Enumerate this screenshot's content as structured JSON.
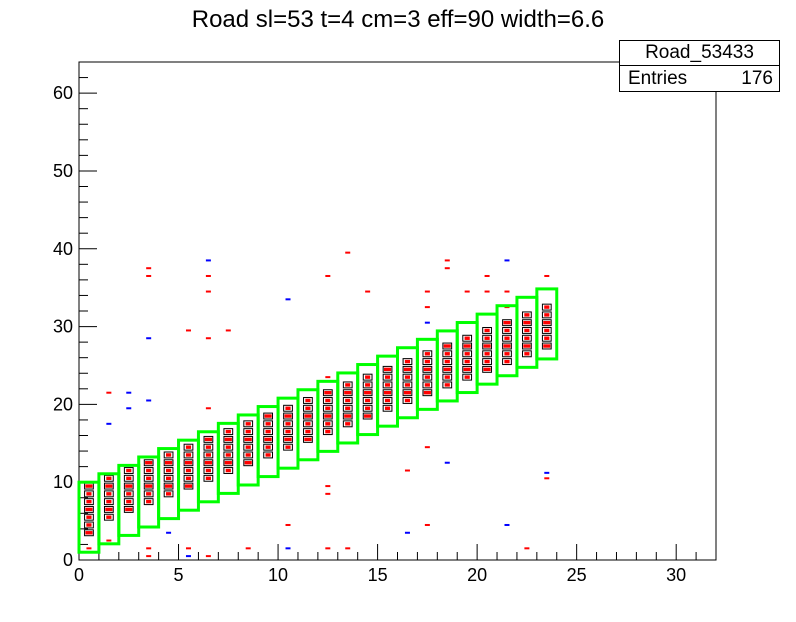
{
  "chart_data": {
    "type": "heatmap",
    "title": "Road sl=53 t=4 cm=3 eff=90 width=6.6",
    "stats": {
      "name": "Road_53433",
      "entries_label": "Entries",
      "entries_value": "176"
    },
    "xlim": [
      0,
      32
    ],
    "ylim": [
      0,
      64
    ],
    "x_ticks": [
      "0",
      "5",
      "10",
      "15",
      "20",
      "25",
      "30"
    ],
    "y_ticks": [
      "0",
      "10",
      "20",
      "30",
      "40",
      "50",
      "60"
    ],
    "xlabel": "",
    "ylabel": "",
    "colors": {
      "frame": "#000000",
      "road": "#00ff00",
      "red": "#ff0000",
      "blue": "#0000ff",
      "black": "#000000"
    },
    "road_band": {
      "x_start": 0,
      "x_end": 24,
      "y_low_at_start": 1,
      "y_high_at_start": 10,
      "slope": 1.08,
      "step": 1
    },
    "main_cells": [
      [
        0,
        3
      ],
      [
        0,
        4
      ],
      [
        0,
        5
      ],
      [
        0,
        6
      ],
      [
        0,
        7
      ],
      [
        0,
        8
      ],
      [
        0,
        9
      ],
      [
        1,
        5
      ],
      [
        1,
        6
      ],
      [
        1,
        7
      ],
      [
        1,
        8
      ],
      [
        1,
        9
      ],
      [
        1,
        10
      ],
      [
        2,
        6
      ],
      [
        2,
        7
      ],
      [
        2,
        8
      ],
      [
        2,
        9
      ],
      [
        2,
        10
      ],
      [
        2,
        11
      ],
      [
        3,
        7
      ],
      [
        3,
        8
      ],
      [
        3,
        9
      ],
      [
        3,
        10
      ],
      [
        3,
        11
      ],
      [
        3,
        12
      ],
      [
        4,
        8
      ],
      [
        4,
        9
      ],
      [
        4,
        10
      ],
      [
        4,
        11
      ],
      [
        4,
        12
      ],
      [
        4,
        13
      ],
      [
        5,
        9
      ],
      [
        5,
        10
      ],
      [
        5,
        11
      ],
      [
        5,
        12
      ],
      [
        5,
        13
      ],
      [
        5,
        14
      ],
      [
        6,
        10
      ],
      [
        6,
        11
      ],
      [
        6,
        12
      ],
      [
        6,
        13
      ],
      [
        6,
        14
      ],
      [
        6,
        15
      ],
      [
        7,
        11
      ],
      [
        7,
        12
      ],
      [
        7,
        13
      ],
      [
        7,
        14
      ],
      [
        7,
        15
      ],
      [
        7,
        16
      ],
      [
        8,
        12
      ],
      [
        8,
        13
      ],
      [
        8,
        14
      ],
      [
        8,
        15
      ],
      [
        8,
        16
      ],
      [
        8,
        17
      ],
      [
        9,
        13
      ],
      [
        9,
        14
      ],
      [
        9,
        15
      ],
      [
        9,
        16
      ],
      [
        9,
        17
      ],
      [
        9,
        18
      ],
      [
        10,
        14
      ],
      [
        10,
        15
      ],
      [
        10,
        16
      ],
      [
        10,
        17
      ],
      [
        10,
        18
      ],
      [
        10,
        19
      ],
      [
        11,
        15
      ],
      [
        11,
        16
      ],
      [
        11,
        17
      ],
      [
        11,
        18
      ],
      [
        11,
        19
      ],
      [
        11,
        20
      ],
      [
        12,
        16
      ],
      [
        12,
        17
      ],
      [
        12,
        18
      ],
      [
        12,
        19
      ],
      [
        12,
        20
      ],
      [
        12,
        21
      ],
      [
        13,
        17
      ],
      [
        13,
        18
      ],
      [
        13,
        19
      ],
      [
        13,
        20
      ],
      [
        13,
        21
      ],
      [
        13,
        22
      ],
      [
        14,
        18
      ],
      [
        14,
        19
      ],
      [
        14,
        20
      ],
      [
        14,
        21
      ],
      [
        14,
        22
      ],
      [
        14,
        23
      ],
      [
        15,
        19
      ],
      [
        15,
        20
      ],
      [
        15,
        21
      ],
      [
        15,
        22
      ],
      [
        15,
        23
      ],
      [
        15,
        24
      ],
      [
        16,
        20
      ],
      [
        16,
        21
      ],
      [
        16,
        22
      ],
      [
        16,
        23
      ],
      [
        16,
        24
      ],
      [
        16,
        25
      ],
      [
        17,
        21
      ],
      [
        17,
        22
      ],
      [
        17,
        23
      ],
      [
        17,
        24
      ],
      [
        17,
        25
      ],
      [
        17,
        26
      ],
      [
        18,
        22
      ],
      [
        18,
        23
      ],
      [
        18,
        24
      ],
      [
        18,
        25
      ],
      [
        18,
        26
      ],
      [
        18,
        27
      ],
      [
        19,
        23
      ],
      [
        19,
        24
      ],
      [
        19,
        25
      ],
      [
        19,
        26
      ],
      [
        19,
        27
      ],
      [
        19,
        28
      ],
      [
        20,
        24
      ],
      [
        20,
        25
      ],
      [
        20,
        26
      ],
      [
        20,
        27
      ],
      [
        20,
        28
      ],
      [
        20,
        29
      ],
      [
        21,
        25
      ],
      [
        21,
        26
      ],
      [
        21,
        27
      ],
      [
        21,
        28
      ],
      [
        21,
        29
      ],
      [
        21,
        30
      ],
      [
        22,
        26
      ],
      [
        22,
        27
      ],
      [
        22,
        28
      ],
      [
        22,
        29
      ],
      [
        22,
        30
      ],
      [
        22,
        31
      ],
      [
        23,
        27
      ],
      [
        23,
        28
      ],
      [
        23,
        29
      ],
      [
        23,
        30
      ],
      [
        23,
        31
      ],
      [
        23,
        32
      ]
    ],
    "outliers": [
      {
        "x": 0,
        "y": 1,
        "c": "red"
      },
      {
        "x": 1,
        "y": 2,
        "c": "red"
      },
      {
        "x": 3,
        "y": 1,
        "c": "red"
      },
      {
        "x": 3,
        "y": 0,
        "c": "red"
      },
      {
        "x": 4,
        "y": 3,
        "c": "blue"
      },
      {
        "x": 5,
        "y": 1,
        "c": "red"
      },
      {
        "x": 5,
        "y": 0,
        "c": "blue"
      },
      {
        "x": 6,
        "y": 0,
        "c": "red"
      },
      {
        "x": 8,
        "y": 1,
        "c": "red"
      },
      {
        "x": 10,
        "y": 4,
        "c": "red"
      },
      {
        "x": 10,
        "y": 1,
        "c": "blue"
      },
      {
        "x": 12,
        "y": 1,
        "c": "red"
      },
      {
        "x": 13,
        "y": 1,
        "c": "red"
      },
      {
        "x": 12,
        "y": 9,
        "c": "red"
      },
      {
        "x": 12,
        "y": 8,
        "c": "red"
      },
      {
        "x": 16,
        "y": 3,
        "c": "blue"
      },
      {
        "x": 17,
        "y": 4,
        "c": "red"
      },
      {
        "x": 21,
        "y": 4,
        "c": "blue"
      },
      {
        "x": 22,
        "y": 1,
        "c": "red"
      },
      {
        "x": 16,
        "y": 11,
        "c": "red"
      },
      {
        "x": 17,
        "y": 14,
        "c": "red"
      },
      {
        "x": 18,
        "y": 12,
        "c": "blue"
      },
      {
        "x": 23,
        "y": 10,
        "c": "red"
      },
      {
        "x": 23,
        "y": 10.7,
        "c": "blue"
      },
      {
        "x": 1,
        "y": 17,
        "c": "blue"
      },
      {
        "x": 1,
        "y": 21,
        "c": "red"
      },
      {
        "x": 2,
        "y": 21,
        "c": "blue"
      },
      {
        "x": 2,
        "y": 19,
        "c": "blue"
      },
      {
        "x": 3,
        "y": 20,
        "c": "blue"
      },
      {
        "x": 3,
        "y": 28,
        "c": "blue"
      },
      {
        "x": 3,
        "y": 37,
        "c": "red"
      },
      {
        "x": 3,
        "y": 36,
        "c": "red"
      },
      {
        "x": 5,
        "y": 29,
        "c": "red"
      },
      {
        "x": 6,
        "y": 38,
        "c": "blue"
      },
      {
        "x": 6,
        "y": 36,
        "c": "red"
      },
      {
        "x": 6,
        "y": 34,
        "c": "red"
      },
      {
        "x": 6,
        "y": 28,
        "c": "red"
      },
      {
        "x": 6,
        "y": 19,
        "c": "red"
      },
      {
        "x": 7,
        "y": 29,
        "c": "red"
      },
      {
        "x": 10,
        "y": 33,
        "c": "blue"
      },
      {
        "x": 12,
        "y": 36,
        "c": "red"
      },
      {
        "x": 12,
        "y": 23,
        "c": "red"
      },
      {
        "x": 13,
        "y": 39,
        "c": "red"
      },
      {
        "x": 14,
        "y": 34,
        "c": "red"
      },
      {
        "x": 17,
        "y": 34,
        "c": "red"
      },
      {
        "x": 17,
        "y": 32,
        "c": "red"
      },
      {
        "x": 17,
        "y": 30,
        "c": "blue"
      },
      {
        "x": 18,
        "y": 38,
        "c": "red"
      },
      {
        "x": 18,
        "y": 37,
        "c": "red"
      },
      {
        "x": 19,
        "y": 34,
        "c": "red"
      },
      {
        "x": 20,
        "y": 36,
        "c": "red"
      },
      {
        "x": 20,
        "y": 34,
        "c": "red"
      },
      {
        "x": 21,
        "y": 38,
        "c": "blue"
      },
      {
        "x": 21,
        "y": 34,
        "c": "red"
      },
      {
        "x": 21,
        "y": 32,
        "c": "red"
      },
      {
        "x": 23,
        "y": 36,
        "c": "red"
      }
    ]
  }
}
